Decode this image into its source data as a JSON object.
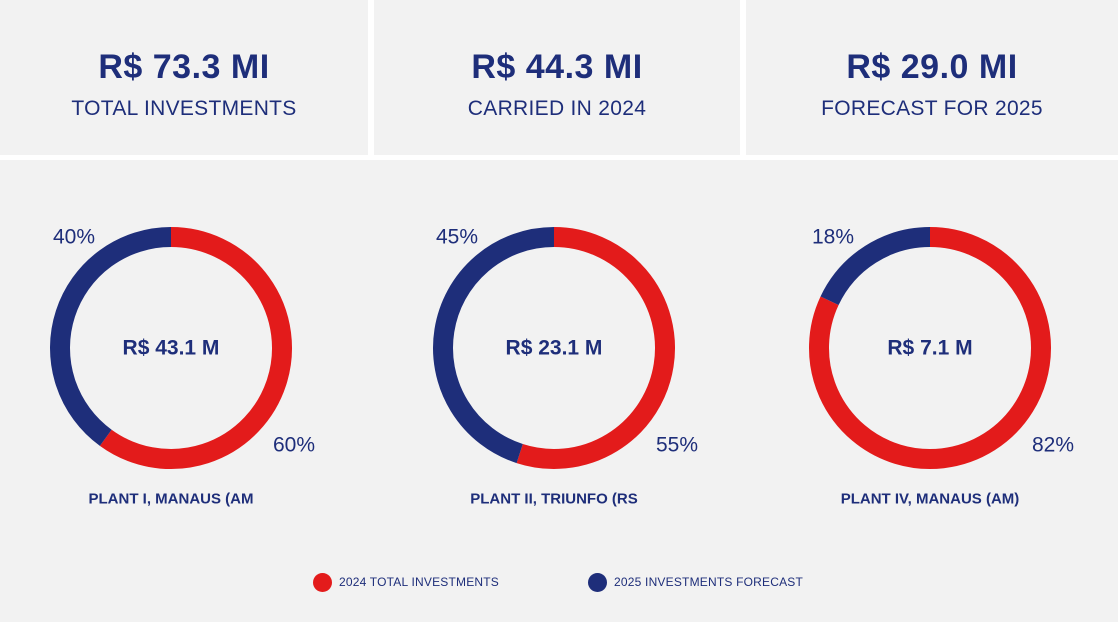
{
  "colors": {
    "red": "#e31b1b",
    "navy": "#1e2e7a",
    "panel": "#f2f2f2"
  },
  "kpis": [
    {
      "value": "R$ 73.3 MI",
      "label": "TOTAL INVESTMENTS"
    },
    {
      "value": "R$ 44.3 MI",
      "label": "CARRIED IN 2024"
    },
    {
      "value": "R$ 29.0 MI",
      "label": "FORECAST FOR 2025"
    }
  ],
  "legend": {
    "red_label": "2024 TOTAL INVESTMENTS",
    "navy_label": "2025 INVESTMENTS FORECAST"
  },
  "chart_data": [
    {
      "type": "pie",
      "title": "PLANT I, MANAUS (AM",
      "center_label": "R$ 43.1 M",
      "series": [
        {
          "name": "2024 TOTAL INVESTMENTS",
          "value": 60,
          "label": "60%"
        },
        {
          "name": "2025 INVESTMENTS FORECAST",
          "value": 40,
          "label": "40%"
        }
      ]
    },
    {
      "type": "pie",
      "title": "PLANT II, TRIUNFO (RS",
      "center_label": "R$ 23.1 M",
      "series": [
        {
          "name": "2024 TOTAL INVESTMENTS",
          "value": 55,
          "label": "55%"
        },
        {
          "name": "2025 INVESTMENTS FORECAST",
          "value": 45,
          "label": "45%"
        }
      ]
    },
    {
      "type": "pie",
      "title": "PLANT IV, MANAUS (AM)",
      "center_label": "R$ 7.1 M",
      "series": [
        {
          "name": "2024 TOTAL INVESTMENTS",
          "value": 82,
          "label": "82%"
        },
        {
          "name": "2025 INVESTMENTS FORECAST",
          "value": 18,
          "label": "18%"
        }
      ]
    }
  ]
}
